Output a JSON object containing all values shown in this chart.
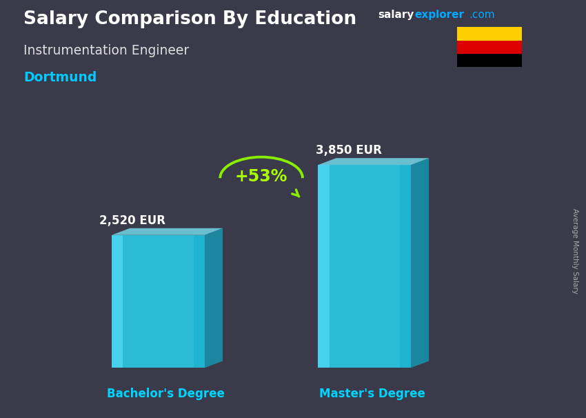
{
  "title_main": "Salary Comparison By Education",
  "title_sub": "Instrumentation Engineer",
  "title_city": "Dortmund",
  "watermark_salary": "salary",
  "watermark_explorer": "explorer",
  "watermark_com": ".com",
  "ylabel": "Average Monthly Salary",
  "categories": [
    "Bachelor's Degree",
    "Master's Degree"
  ],
  "values": [
    2520,
    3850
  ],
  "value_labels": [
    "2,520 EUR",
    "3,850 EUR"
  ],
  "pct_change": "+53%",
  "bar_color_face": "#29d8f5",
  "bar_color_left": "#5ae4ff",
  "bar_color_right": "#0fa8c8",
  "bar_color_top": "#7aeeff",
  "bar_alpha": 0.82,
  "bg_color": "#3a3a4a",
  "title_color": "#ffffff",
  "subtitle_color": "#e0e0e0",
  "city_color": "#00ccff",
  "label_color": "#ffffff",
  "xticklabel_color": "#00d4ff",
  "pct_color": "#aaff00",
  "arrow_color": "#88ee00",
  "flag_colors": [
    "#000000",
    "#DD0000",
    "#FFCE00"
  ],
  "watermark_color": "#00aaff",
  "watermark_white": "#ffffff"
}
